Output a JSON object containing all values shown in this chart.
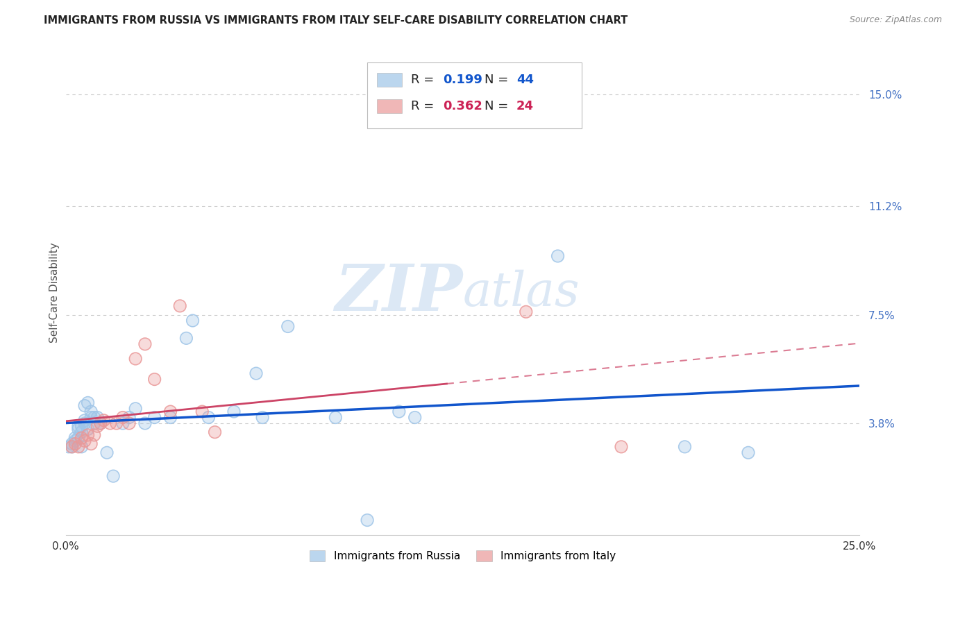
{
  "title": "IMMIGRANTS FROM RUSSIA VS IMMIGRANTS FROM ITALY SELF-CARE DISABILITY CORRELATION CHART",
  "source": "Source: ZipAtlas.com",
  "ylabel": "Self-Care Disability",
  "xlim": [
    0.0,
    0.25
  ],
  "ylim": [
    0.0,
    0.165
  ],
  "x_ticks": [
    0.0,
    0.05,
    0.1,
    0.15,
    0.2,
    0.25
  ],
  "x_tick_labels": [
    "0.0%",
    "",
    "",
    "",
    "",
    "25.0%"
  ],
  "y_tick_labels_right": [
    "15.0%",
    "11.2%",
    "7.5%",
    "3.8%"
  ],
  "y_tick_positions_right": [
    0.15,
    0.112,
    0.075,
    0.038
  ],
  "grid_color": "#cccccc",
  "color_russia": "#9fc5e8",
  "color_italy": "#ea9999",
  "trendline_color_russia": "#1155cc",
  "trendline_color_italy": "#cc4466",
  "watermark_color": "#dce8f5",
  "russia_x": [
    0.001,
    0.002,
    0.002,
    0.003,
    0.003,
    0.004,
    0.004,
    0.004,
    0.005,
    0.005,
    0.005,
    0.006,
    0.006,
    0.006,
    0.007,
    0.007,
    0.008,
    0.008,
    0.009,
    0.009,
    0.01,
    0.011,
    0.013,
    0.015,
    0.018,
    0.02,
    0.022,
    0.025,
    0.028,
    0.033,
    0.038,
    0.04,
    0.045,
    0.053,
    0.06,
    0.062,
    0.07,
    0.085,
    0.095,
    0.105,
    0.11,
    0.155,
    0.195,
    0.215
  ],
  "russia_y": [
    0.03,
    0.031,
    0.03,
    0.032,
    0.033,
    0.033,
    0.036,
    0.037,
    0.035,
    0.037,
    0.03,
    0.038,
    0.039,
    0.044,
    0.045,
    0.036,
    0.04,
    0.042,
    0.04,
    0.038,
    0.04,
    0.038,
    0.028,
    0.02,
    0.038,
    0.04,
    0.043,
    0.038,
    0.04,
    0.04,
    0.067,
    0.073,
    0.04,
    0.042,
    0.055,
    0.04,
    0.071,
    0.04,
    0.005,
    0.042,
    0.04,
    0.095,
    0.03,
    0.028
  ],
  "italy_x": [
    0.002,
    0.003,
    0.004,
    0.005,
    0.006,
    0.007,
    0.008,
    0.009,
    0.01,
    0.011,
    0.012,
    0.014,
    0.016,
    0.018,
    0.02,
    0.022,
    0.025,
    0.028,
    0.033,
    0.036,
    0.043,
    0.047,
    0.145,
    0.175
  ],
  "italy_y": [
    0.03,
    0.031,
    0.03,
    0.033,
    0.032,
    0.034,
    0.031,
    0.034,
    0.037,
    0.038,
    0.039,
    0.038,
    0.038,
    0.04,
    0.038,
    0.06,
    0.065,
    0.053,
    0.042,
    0.078,
    0.042,
    0.035,
    0.076,
    0.03
  ]
}
